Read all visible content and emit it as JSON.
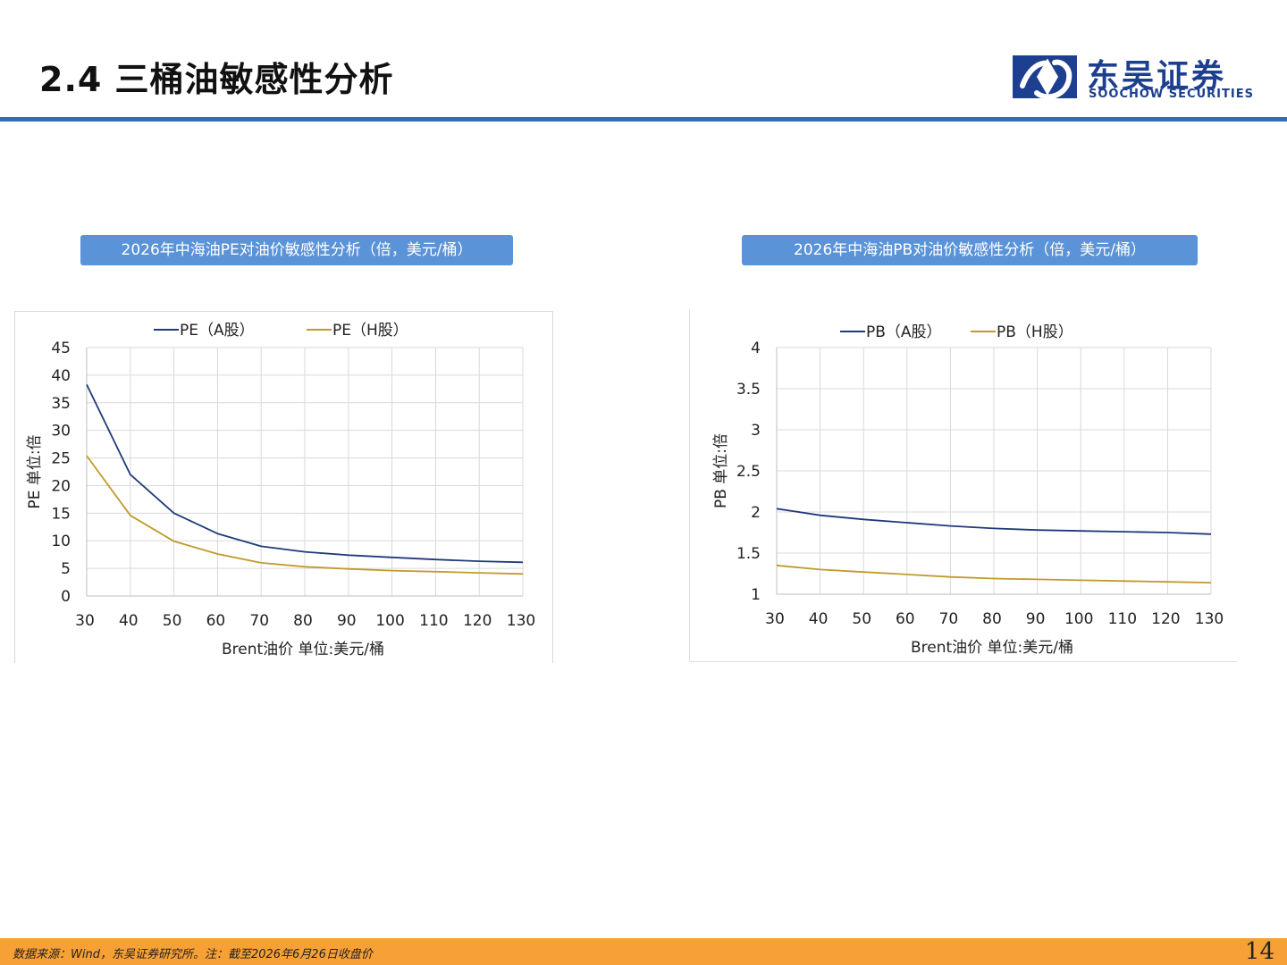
{
  "header": {
    "title": "2.4 三桶油敏感性分析",
    "logo": {
      "name_cn": "东吴证券",
      "name_en": "SOOCHOW SECURITIES",
      "icon": "soochow-logo-icon",
      "color": "#1d3f8f"
    },
    "rule_color": "#2b6fb5"
  },
  "charts": [
    {
      "caption": "2026年中海油PE对油价敏感性分析（倍，美元/桶）"
    },
    {
      "caption": "2026年中海油PB对油价敏感性分析（倍，美元/桶）"
    }
  ],
  "chart_data": [
    {
      "type": "line",
      "x": [
        30,
        40,
        50,
        60,
        70,
        80,
        90,
        100,
        110,
        120,
        130
      ],
      "series": [
        {
          "name": "PE（A股）",
          "color": "#1f3a7a",
          "values": [
            38.3,
            22.0,
            15.0,
            11.3,
            9.0,
            8.0,
            7.4,
            7.0,
            6.6,
            6.3,
            6.1
          ]
        },
        {
          "name": "PE（H股）",
          "color": "#c09a2a",
          "values": [
            25.4,
            14.6,
            9.9,
            7.6,
            6.0,
            5.3,
            4.9,
            4.6,
            4.4,
            4.2,
            4.0
          ]
        }
      ],
      "xlabel": "Brent油价  单位:美元/桶",
      "ylabel": "PE  单位:倍",
      "xticks": [
        "30",
        "40",
        "50",
        "60",
        "70",
        "80",
        "90",
        "100",
        "110",
        "120",
        "130"
      ],
      "yticks": [
        "0",
        "5",
        "10",
        "15",
        "20",
        "25",
        "30",
        "35",
        "40",
        "45"
      ],
      "xlim": [
        30,
        130
      ],
      "ylim": [
        0,
        45
      ],
      "grid": true,
      "legend": "top"
    },
    {
      "type": "line",
      "x": [
        30,
        40,
        50,
        60,
        70,
        80,
        90,
        100,
        110,
        120,
        130
      ],
      "series": [
        {
          "name": "PB（A股）",
          "color": "#1f3a7a",
          "values": [
            2.04,
            1.96,
            1.91,
            1.87,
            1.83,
            1.8,
            1.78,
            1.77,
            1.76,
            1.75,
            1.73
          ]
        },
        {
          "name": "PB（H股）",
          "color": "#c09a2a",
          "values": [
            1.35,
            1.3,
            1.27,
            1.24,
            1.21,
            1.19,
            1.18,
            1.17,
            1.16,
            1.15,
            1.14
          ]
        }
      ],
      "xlabel": "Brent油价  单位:美元/桶",
      "ylabel": "PB  单位:倍",
      "xticks": [
        "30",
        "40",
        "50",
        "60",
        "70",
        "80",
        "90",
        "100",
        "110",
        "120",
        "130"
      ],
      "yticks": [
        "1",
        "1.5",
        "2",
        "2.5",
        "3",
        "3.5",
        "4"
      ],
      "xlim": [
        30,
        130
      ],
      "ylim": [
        1,
        4
      ],
      "grid": true,
      "legend": "top"
    }
  ],
  "footer": {
    "note": "数据来源：Wind，东吴证券研究所。注：截至2026年6月26日收盘价",
    "page_number": "14",
    "color": "#f7a035"
  }
}
